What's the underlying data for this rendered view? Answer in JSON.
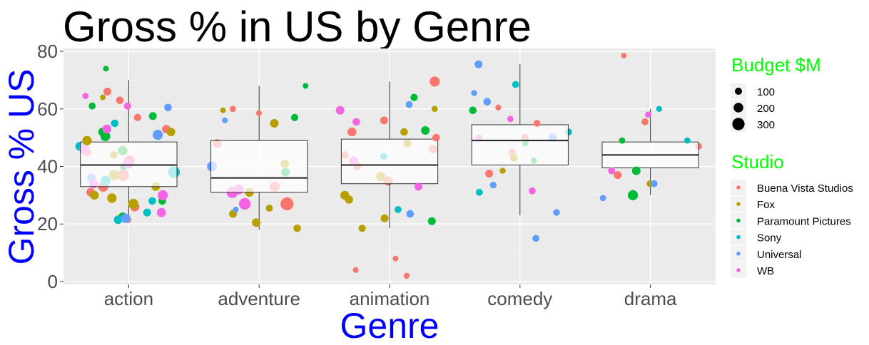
{
  "chart_data": {
    "type": "scatter",
    "title": "Gross % in US by Genre",
    "xlabel": "Genre",
    "ylabel": "Gross % US",
    "categories": [
      "action",
      "adventure",
      "animation",
      "comedy",
      "drama"
    ],
    "ylim": [
      -1,
      81
    ],
    "yticks": [
      0,
      20,
      40,
      60,
      80
    ],
    "grid": true,
    "legend_position": "right",
    "size_legend": {
      "title": "Budget $M",
      "entries": [
        {
          "label": "100",
          "value": 100
        },
        {
          "label": "200",
          "value": 200
        },
        {
          "label": "300",
          "value": 300
        }
      ]
    },
    "color_legend": {
      "title": "Studio",
      "entries": [
        {
          "label": "Buena Vista Studios",
          "color": "#F8766D"
        },
        {
          "label": "Fox",
          "color": "#B79F00"
        },
        {
          "label": "Paramount Pictures",
          "color": "#00BA38"
        },
        {
          "label": "Sony",
          "color": "#00BFC4"
        },
        {
          "label": "Universal",
          "color": "#619CFF"
        },
        {
          "label": "WB",
          "color": "#F564E3"
        }
      ]
    },
    "boxplots": [
      {
        "category": "action",
        "whisker_low": 21,
        "q1": 33,
        "median": 40.5,
        "q3": 48.5,
        "whisker_high": 70
      },
      {
        "category": "adventure",
        "whisker_low": 18,
        "q1": 31,
        "median": 36,
        "q3": 49,
        "whisker_high": 68
      },
      {
        "category": "animation",
        "whisker_low": 18.5,
        "q1": 34,
        "median": 40.5,
        "q3": 49.5,
        "whisker_high": 69.5
      },
      {
        "category": "comedy",
        "whisker_low": 23,
        "q1": 40.5,
        "median": 49,
        "q3": 54.5,
        "whisker_high": 75.5
      },
      {
        "category": "drama",
        "whisker_low": 30,
        "q1": 39.5,
        "median": 44,
        "q3": 48.5,
        "whisker_high": 60
      }
    ],
    "series": [
      {
        "name": "Buena Vista Studios",
        "points": [
          {
            "x": "action",
            "y": 21.5,
            "budget": 100
          },
          {
            "x": "action",
            "y": 26,
            "budget": 180
          },
          {
            "x": "action",
            "y": 31,
            "budget": 150
          },
          {
            "x": "action",
            "y": 33,
            "budget": 200
          },
          {
            "x": "action",
            "y": 37,
            "budget": 260
          },
          {
            "x": "action",
            "y": 42,
            "budget": 230
          },
          {
            "x": "action",
            "y": 45,
            "budget": 150
          },
          {
            "x": "action",
            "y": 53,
            "budget": 140
          },
          {
            "x": "action",
            "y": 57,
            "budget": 110
          },
          {
            "x": "action",
            "y": 63,
            "budget": 120
          },
          {
            "x": "action",
            "y": 66,
            "budget": 130
          },
          {
            "x": "adventure",
            "y": 27,
            "budget": 290
          },
          {
            "x": "adventure",
            "y": 33,
            "budget": 200
          },
          {
            "x": "adventure",
            "y": 48,
            "budget": 150
          },
          {
            "x": "adventure",
            "y": 58.5,
            "budget": 60
          },
          {
            "x": "adventure",
            "y": 60,
            "budget": 80
          },
          {
            "x": "animation",
            "y": 2,
            "budget": 70
          },
          {
            "x": "animation",
            "y": 4,
            "budget": 60
          },
          {
            "x": "animation",
            "y": 8,
            "budget": 60
          },
          {
            "x": "animation",
            "y": 35,
            "budget": 180
          },
          {
            "x": "animation",
            "y": 40,
            "budget": 130
          },
          {
            "x": "animation",
            "y": 44,
            "budget": 120
          },
          {
            "x": "animation",
            "y": 46,
            "budget": 150
          },
          {
            "x": "animation",
            "y": 50,
            "budget": 120
          },
          {
            "x": "animation",
            "y": 52,
            "budget": 160
          },
          {
            "x": "animation",
            "y": 56,
            "budget": 130
          },
          {
            "x": "animation",
            "y": 69.5,
            "budget": 200
          },
          {
            "x": "comedy",
            "y": 37.5,
            "budget": 130
          },
          {
            "x": "comedy",
            "y": 45,
            "budget": 110
          },
          {
            "x": "comedy",
            "y": 50,
            "budget": 120
          },
          {
            "x": "comedy",
            "y": 55,
            "budget": 90
          },
          {
            "x": "comedy",
            "y": 60.5,
            "budget": 70
          },
          {
            "x": "drama",
            "y": 37,
            "budget": 130
          },
          {
            "x": "drama",
            "y": 47,
            "budget": 90
          },
          {
            "x": "drama",
            "y": 55.5,
            "budget": 100
          },
          {
            "x": "drama",
            "y": 78.5,
            "budget": 60
          }
        ]
      },
      {
        "name": "Fox",
        "points": [
          {
            "x": "action",
            "y": 27,
            "budget": 200
          },
          {
            "x": "action",
            "y": 29,
            "budget": 180
          },
          {
            "x": "action",
            "y": 30,
            "budget": 160
          },
          {
            "x": "action",
            "y": 33,
            "budget": 150
          },
          {
            "x": "action",
            "y": 37,
            "budget": 200
          },
          {
            "x": "action",
            "y": 44,
            "budget": 120
          },
          {
            "x": "action",
            "y": 49,
            "budget": 180
          },
          {
            "x": "action",
            "y": 52,
            "budget": 150
          },
          {
            "x": "action",
            "y": 64,
            "budget": 60
          },
          {
            "x": "adventure",
            "y": 18.5,
            "budget": 120
          },
          {
            "x": "adventure",
            "y": 20.5,
            "budget": 150
          },
          {
            "x": "adventure",
            "y": 23.5,
            "budget": 130
          },
          {
            "x": "adventure",
            "y": 25.5,
            "budget": 100
          },
          {
            "x": "adventure",
            "y": 31,
            "budget": 160
          },
          {
            "x": "adventure",
            "y": 41,
            "budget": 140
          },
          {
            "x": "adventure",
            "y": 55,
            "budget": 150
          },
          {
            "x": "adventure",
            "y": 59.5,
            "budget": 60
          },
          {
            "x": "animation",
            "y": 18.5,
            "budget": 110
          },
          {
            "x": "animation",
            "y": 22,
            "budget": 130
          },
          {
            "x": "animation",
            "y": 28.5,
            "budget": 140
          },
          {
            "x": "animation",
            "y": 30,
            "budget": 160
          },
          {
            "x": "animation",
            "y": 36.5,
            "budget": 180
          },
          {
            "x": "animation",
            "y": 48,
            "budget": 140
          },
          {
            "x": "animation",
            "y": 52,
            "budget": 120
          },
          {
            "x": "animation",
            "y": 60,
            "budget": 80
          },
          {
            "x": "comedy",
            "y": 38.5,
            "budget": 70
          },
          {
            "x": "comedy",
            "y": 43,
            "budget": 130
          },
          {
            "x": "drama",
            "y": 34,
            "budget": 90
          }
        ]
      },
      {
        "name": "Paramount Pictures",
        "points": [
          {
            "x": "action",
            "y": 22.5,
            "budget": 150
          },
          {
            "x": "action",
            "y": 28,
            "budget": 120
          },
          {
            "x": "action",
            "y": 40,
            "budget": 110
          },
          {
            "x": "action",
            "y": 45.5,
            "budget": 170
          },
          {
            "x": "action",
            "y": 50.5,
            "budget": 190
          },
          {
            "x": "action",
            "y": 52,
            "budget": 150
          },
          {
            "x": "action",
            "y": 57.5,
            "budget": 130
          },
          {
            "x": "action",
            "y": 61,
            "budget": 100
          },
          {
            "x": "action",
            "y": 74,
            "budget": 60
          },
          {
            "x": "adventure",
            "y": 38,
            "budget": 150
          },
          {
            "x": "adventure",
            "y": 57,
            "budget": 110
          },
          {
            "x": "adventure",
            "y": 68,
            "budget": 60
          },
          {
            "x": "animation",
            "y": 21,
            "budget": 130
          },
          {
            "x": "animation",
            "y": 52.5,
            "budget": 150
          },
          {
            "x": "animation",
            "y": 64,
            "budget": 110
          },
          {
            "x": "comedy",
            "y": 42,
            "budget": 80
          },
          {
            "x": "comedy",
            "y": 48,
            "budget": 70
          },
          {
            "x": "comedy",
            "y": 59.5,
            "budget": 120
          },
          {
            "x": "drama",
            "y": 30,
            "budget": 200
          },
          {
            "x": "drama",
            "y": 38.5,
            "budget": 150
          },
          {
            "x": "drama",
            "y": 49,
            "budget": 80
          }
        ]
      },
      {
        "name": "Sony",
        "points": [
          {
            "x": "action",
            "y": 21.5,
            "budget": 150
          },
          {
            "x": "action",
            "y": 24,
            "budget": 130
          },
          {
            "x": "action",
            "y": 28,
            "budget": 120
          },
          {
            "x": "action",
            "y": 35,
            "budget": 190
          },
          {
            "x": "action",
            "y": 38,
            "budget": 250
          },
          {
            "x": "action",
            "y": 47,
            "budget": 160
          },
          {
            "x": "action",
            "y": 55,
            "budget": 120
          },
          {
            "x": "animation",
            "y": 25,
            "budget": 100
          },
          {
            "x": "animation",
            "y": 43.5,
            "budget": 100
          },
          {
            "x": "comedy",
            "y": 31,
            "budget": 100
          },
          {
            "x": "comedy",
            "y": 52,
            "budget": 100
          },
          {
            "x": "comedy",
            "y": 68.5,
            "budget": 100
          },
          {
            "x": "drama",
            "y": 49,
            "budget": 80
          },
          {
            "x": "drama",
            "y": 60,
            "budget": 70
          }
        ]
      },
      {
        "name": "Universal",
        "points": [
          {
            "x": "action",
            "y": 22,
            "budget": 180
          },
          {
            "x": "action",
            "y": 36,
            "budget": 150
          },
          {
            "x": "action",
            "y": 51,
            "budget": 200
          },
          {
            "x": "action",
            "y": 60.5,
            "budget": 120
          },
          {
            "x": "adventure",
            "y": 25,
            "budget": 60
          },
          {
            "x": "adventure",
            "y": 40,
            "budget": 190
          },
          {
            "x": "adventure",
            "y": 56,
            "budget": 60
          },
          {
            "x": "animation",
            "y": 23.5,
            "budget": 120
          },
          {
            "x": "animation",
            "y": 61.5,
            "budget": 100
          },
          {
            "x": "comedy",
            "y": 15,
            "budget": 100
          },
          {
            "x": "comedy",
            "y": 24,
            "budget": 90
          },
          {
            "x": "comedy",
            "y": 33.5,
            "budget": 90
          },
          {
            "x": "comedy",
            "y": 50,
            "budget": 140
          },
          {
            "x": "comedy",
            "y": 62.5,
            "budget": 120
          },
          {
            "x": "comedy",
            "y": 65.5,
            "budget": 70
          },
          {
            "x": "comedy",
            "y": 75.5,
            "budget": 130
          },
          {
            "x": "drama",
            "y": 29,
            "budget": 80
          },
          {
            "x": "drama",
            "y": 34,
            "budget": 100
          }
        ]
      },
      {
        "name": "WB",
        "points": [
          {
            "x": "action",
            "y": 24,
            "budget": 170
          },
          {
            "x": "action",
            "y": 30,
            "budget": 200
          },
          {
            "x": "action",
            "y": 34,
            "budget": 160
          },
          {
            "x": "action",
            "y": 41,
            "budget": 210
          },
          {
            "x": "action",
            "y": 46,
            "budget": 200
          },
          {
            "x": "action",
            "y": 53,
            "budget": 160
          },
          {
            "x": "action",
            "y": 61,
            "budget": 110
          },
          {
            "x": "action",
            "y": 64.5,
            "budget": 80
          },
          {
            "x": "adventure",
            "y": 27,
            "budget": 250
          },
          {
            "x": "adventure",
            "y": 31,
            "budget": 240
          },
          {
            "x": "adventure",
            "y": 32,
            "budget": 190
          },
          {
            "x": "animation",
            "y": 33,
            "budget": 130
          },
          {
            "x": "animation",
            "y": 42,
            "budget": 160
          },
          {
            "x": "animation",
            "y": 55.5,
            "budget": 120
          },
          {
            "x": "animation",
            "y": 59.5,
            "budget": 150
          },
          {
            "x": "comedy",
            "y": 31.5,
            "budget": 100
          },
          {
            "x": "comedy",
            "y": 50,
            "budget": 90
          },
          {
            "x": "comedy",
            "y": 56.5,
            "budget": 80
          },
          {
            "x": "drama",
            "y": 38.5,
            "budget": 100
          },
          {
            "x": "drama",
            "y": 58,
            "budget": 80
          }
        ]
      }
    ]
  }
}
